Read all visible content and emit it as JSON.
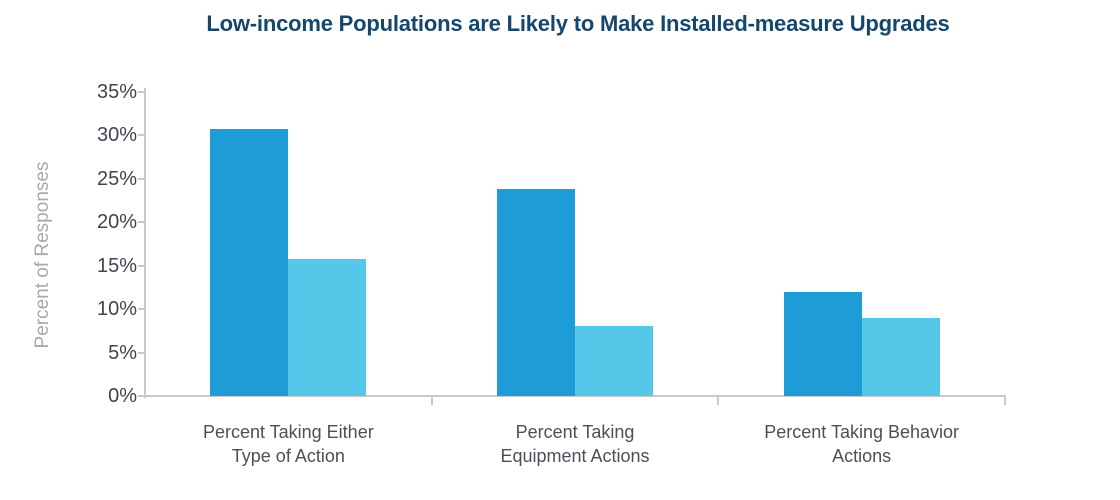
{
  "chart_data": {
    "type": "bar",
    "title": "Low-income Populations are Likely to Make Installed-measure Upgrades",
    "ylabel": "Percent of Responses",
    "xlabel": "",
    "ylim": [
      0,
      35
    ],
    "ytick_step": 5,
    "ytick_suffix": "%",
    "grid": false,
    "legend": "none",
    "categories": [
      [
        "Percent Taking Either",
        "Type of Action"
      ],
      [
        "Percent Taking",
        "Equipment Actions"
      ],
      [
        "Percent Taking Behavior",
        "Actions"
      ]
    ],
    "series": [
      {
        "color": "#1e9cd7",
        "values": [
          30.7,
          23.8,
          12.0
        ]
      },
      {
        "color": "#55c7e8",
        "values": [
          15.8,
          8.0,
          9.0
        ]
      }
    ],
    "colors": {
      "title": "#15466b",
      "tick_label": "#3f4450",
      "ylabel": "#a9a9a9",
      "category_label": "#4b5058",
      "axis_line": "#c9c9c9"
    }
  }
}
